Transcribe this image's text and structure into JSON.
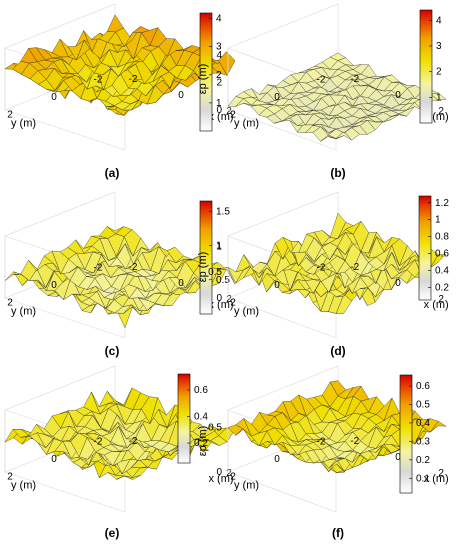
{
  "colormap": [
    "#ffffff",
    "#e8e8e8",
    "#f4f4a0",
    "#f0e000",
    "#f0a000",
    "#e84000",
    "#d00000"
  ],
  "chart_data": [
    {
      "type": "surface",
      "label": "(a)",
      "xlabel": "x (m)",
      "ylabel": "y (m)",
      "zlabel": "εp (m)",
      "x_ticks": [
        "-2",
        "0",
        "2"
      ],
      "y_ticks": [
        "2",
        "0",
        "-2"
      ],
      "z_ticks": [
        "0",
        "5"
      ],
      "zlim": [
        0,
        5
      ],
      "colorbar": {
        "min": 0,
        "max": 4.2,
        "ticks": [
          1,
          2,
          3,
          4
        ],
        "tick_labels": [
          "1",
          "2",
          "3",
          "4"
        ]
      },
      "surface": {
        "mean": 2.2,
        "amplitude": 0.9,
        "edge_rise": 1.2,
        "seed": 11
      }
    },
    {
      "type": "surface",
      "label": "(b)",
      "xlabel": "x (m)",
      "ylabel": "y (m)",
      "zlabel": "εp (m)",
      "x_ticks": [
        "-2",
        "0",
        "2"
      ],
      "y_ticks": [
        "2",
        "0",
        "-2"
      ],
      "z_ticks": [
        "0",
        "2",
        "4"
      ],
      "zlim": [
        0,
        4.5
      ],
      "colorbar": {
        "min": 0,
        "max": 4.4,
        "ticks": [
          1,
          2,
          3,
          4
        ],
        "tick_labels": [
          "1",
          "2",
          "3",
          "4"
        ]
      },
      "surface": {
        "mean": 0.4,
        "amplitude": 0.4,
        "edge_rise": 0.2,
        "seed": 23
      }
    },
    {
      "type": "surface",
      "label": "(c)",
      "xlabel": "x (m)",
      "ylabel": "y (m)",
      "zlabel": "εp (m)",
      "x_ticks": [
        "-2",
        "0",
        "2"
      ],
      "y_ticks": [
        "2",
        "0",
        "-2"
      ],
      "z_ticks": [
        "0",
        "1",
        "2"
      ],
      "zlim": [
        0,
        2
      ],
      "colorbar": {
        "min": 0,
        "max": 1.65,
        "ticks": [
          0.5,
          1,
          1.5
        ],
        "tick_labels": [
          "0.5",
          "1",
          "1.5"
        ]
      },
      "surface": {
        "mean": 0.45,
        "amplitude": 0.35,
        "edge_rise": 0.2,
        "seed": 37
      }
    },
    {
      "type": "surface",
      "label": "(d)",
      "xlabel": "x (m)",
      "ylabel": "y (m)",
      "zlabel": "εp (m)",
      "x_ticks": [
        "-2",
        "0",
        "2"
      ],
      "y_ticks": [
        "2",
        "0",
        "-2"
      ],
      "z_ticks": [
        "0",
        "0.5",
        "1"
      ],
      "zlim": [
        0,
        1.2
      ],
      "colorbar": {
        "min": 0.05,
        "max": 1.28,
        "ticks": [
          0.2,
          0.4,
          0.6,
          0.8,
          1,
          1.2
        ],
        "tick_labels": [
          "0.2",
          "0.4",
          "0.6",
          "0.8",
          "1",
          "1.2"
        ]
      },
      "surface": {
        "mean": 0.45,
        "amplitude": 0.25,
        "edge_rise": 0.1,
        "seed": 41
      }
    },
    {
      "type": "surface",
      "label": "(e)",
      "xlabel": "x (m)",
      "ylabel": "y (m)",
      "zlabel": "εp (m)",
      "x_ticks": [
        "-2",
        "0",
        "2"
      ],
      "y_ticks": [
        "2",
        "0",
        "-2"
      ],
      "z_ticks": [
        "0",
        "0.5"
      ],
      "zlim": [
        0,
        0.7
      ],
      "colorbar": {
        "min": 0.05,
        "max": 0.72,
        "ticks": [
          0.2,
          0.4,
          0.6
        ],
        "tick_labels": [
          "0.2",
          "0.4",
          "0.6"
        ]
      },
      "surface": {
        "mean": 0.25,
        "amplitude": 0.12,
        "edge_rise": 0.15,
        "seed": 53
      }
    },
    {
      "type": "surface",
      "label": "(f)",
      "xlabel": "x (m)",
      "ylabel": "y (m)",
      "zlabel": "εp (m)",
      "x_ticks": [
        "-2",
        "0",
        "2"
      ],
      "y_ticks": [
        "2",
        "0",
        "-2"
      ],
      "z_ticks": [
        "0",
        "0.5"
      ],
      "zlim": [
        0,
        0.7
      ],
      "colorbar": {
        "min": 0.02,
        "max": 0.66,
        "ticks": [
          0.1,
          0.2,
          0.3,
          0.4,
          0.5,
          0.6
        ],
        "tick_labels": [
          "0.1",
          "0.2",
          "0.3",
          "0.4",
          "0.5",
          "0.6"
        ]
      },
      "surface": {
        "mean": 0.2,
        "amplitude": 0.08,
        "edge_rise": 0.3,
        "seed": 67
      }
    }
  ]
}
